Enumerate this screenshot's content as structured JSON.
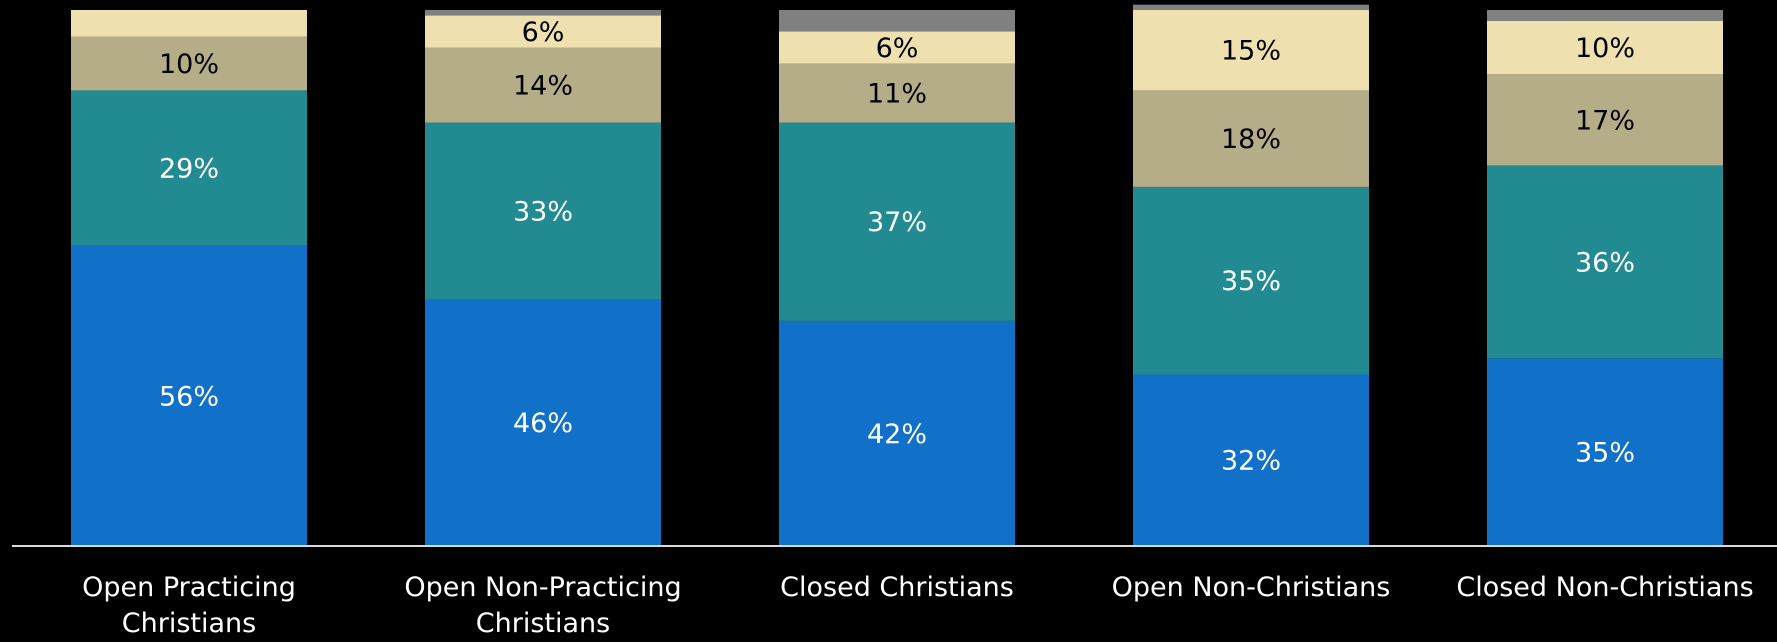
{
  "chart_data": {
    "type": "stacked_bar",
    "categories": [
      "Open Practicing Christians",
      "Open Non-Practicing Christians",
      "Closed Christians",
      "Open Non-Christians",
      "Closed Non-Christians"
    ],
    "ylim": [
      0,
      100
    ],
    "series": [
      {
        "color": "#1170c8",
        "label_color": "#ffffff",
        "values": [
          56,
          46,
          42,
          32,
          35
        ],
        "value_labels": [
          "56%",
          "46%",
          "42%",
          "32%",
          "35%"
        ]
      },
      {
        "color": "#218b91",
        "label_color": "#ffffff",
        "values": [
          29,
          33,
          37,
          35,
          36
        ],
        "value_labels": [
          "29%",
          "33%",
          "37%",
          "35%",
          "36%"
        ]
      },
      {
        "color": "#b5ad88",
        "label_color": "#000000",
        "values": [
          10,
          14,
          11,
          18,
          17
        ],
        "value_labels": [
          "10%",
          "14%",
          "11%",
          "18%",
          "17%"
        ]
      },
      {
        "color": "#efe0b0",
        "label_color": "#000000",
        "values": [
          5,
          6,
          6,
          15,
          10
        ],
        "value_labels": [
          null,
          "6%",
          "6%",
          "15%",
          "10%"
        ]
      },
      {
        "color": "#808080",
        "values": [
          0,
          1,
          4,
          1,
          2
        ]
      }
    ]
  }
}
